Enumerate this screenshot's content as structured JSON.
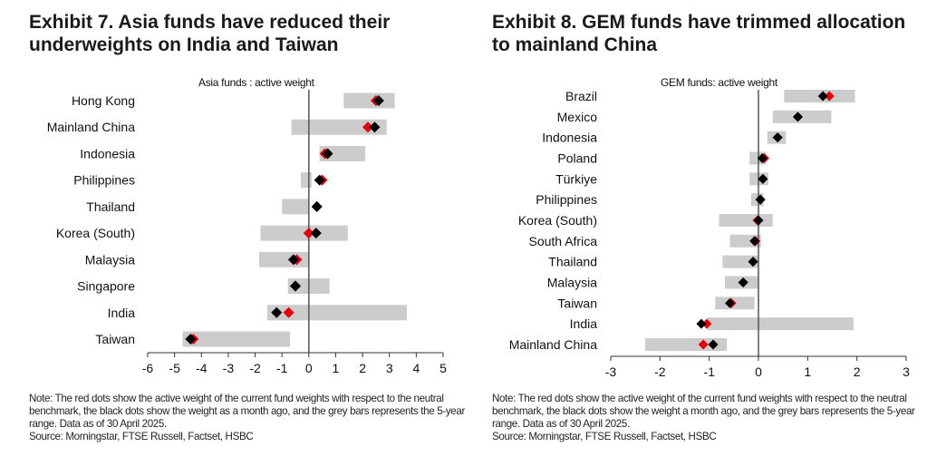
{
  "colors": {
    "current": "#e8000b",
    "month_ago": "#000000",
    "range_bar": "#cccccc",
    "axis": "#555555"
  },
  "chart_data": [
    {
      "type": "range-dot",
      "title": "Exhibit 7. Asia funds have reduced their underweights on India and Taiwan",
      "subtitle": "Asia funds : active weight",
      "xlabel": "",
      "ylabel": "",
      "xlim": [
        -6,
        5
      ],
      "xticks": [
        -6,
        -5,
        -4,
        -3,
        -2,
        -1,
        0,
        1,
        2,
        3,
        4,
        5
      ],
      "grid": false,
      "series_names": [
        "Current active weight (red)",
        "Active weight a month ago (black)",
        "5-year range (grey bar)"
      ],
      "categories": [
        "Hong Kong",
        "Mainland China",
        "Indonesia",
        "Philippines",
        "Thailand",
        "Korea (South)",
        "Malaysia",
        "Singapore",
        "India",
        "Taiwan"
      ],
      "range_min": [
        1.3,
        -0.65,
        0.4,
        -0.3,
        -1.0,
        -1.8,
        -1.85,
        -0.78,
        -1.55,
        -4.7
      ],
      "range_max": [
        3.2,
        2.9,
        2.1,
        0.1,
        0.0,
        1.45,
        0.0,
        0.77,
        3.65,
        -0.7
      ],
      "current": [
        2.5,
        2.2,
        0.6,
        0.5,
        0.3,
        0.0,
        -0.45,
        -0.5,
        -0.75,
        -4.3
      ],
      "month_ago": [
        2.6,
        2.45,
        0.7,
        0.4,
        0.3,
        0.27,
        -0.57,
        -0.5,
        -1.2,
        -4.4
      ],
      "note": "Note: The red dots show the active weight of the current fund weights with respect to the neutral benchmark, the black dots show the weight as a month ago, and the grey bars represents the 5-year range. Data as of 30 April 2025.",
      "source": "Source: Morningstar, FTSE Russell, Factset, HSBC"
    },
    {
      "type": "range-dot",
      "title": "Exhibit 8. GEM funds have trimmed allocation to mainland China",
      "subtitle": "GEM funds: active weight",
      "xlabel": "",
      "ylabel": "",
      "xlim": [
        -3,
        3
      ],
      "xticks": [
        -3,
        -2,
        -1,
        0,
        1,
        2,
        3
      ],
      "grid": false,
      "series_names": [
        "Current active weight (red)",
        "Active weight a month ago (black)",
        "5-year range (grey bar)"
      ],
      "categories": [
        "Brazil",
        "Mexico",
        "Indonesia",
        "Poland",
        "Türkiye",
        "Philippines",
        "Korea (South)",
        "South Africa",
        "Thailand",
        "Malaysia",
        "Taiwan",
        "India",
        "Mainland China"
      ],
      "range_min": [
        0.52,
        0.29,
        0.18,
        -0.18,
        -0.18,
        -0.15,
        -0.8,
        -0.58,
        -0.73,
        -0.68,
        -0.88,
        -1.05,
        -2.3
      ],
      "range_max": [
        1.96,
        1.48,
        0.56,
        0.15,
        0.2,
        0.1,
        0.29,
        0.05,
        0.0,
        0.0,
        -0.08,
        1.93,
        -0.64
      ],
      "current": [
        1.44,
        0.8,
        0.39,
        0.12,
        0.09,
        0.04,
        -0.02,
        -0.06,
        -0.11,
        -0.31,
        -0.55,
        -1.05,
        -1.12
      ],
      "month_ago": [
        1.31,
        0.8,
        0.39,
        0.08,
        0.09,
        0.04,
        0.0,
        -0.08,
        -0.11,
        -0.31,
        -0.58,
        -1.16,
        -0.92
      ],
      "note": "Note: The red dots show the active weight of the current fund weights with respect to the neutral benchmark, the black dots show the weight a month ago, and the grey bars represents the 5-year range. Data as of 30 April 2025.",
      "source": "Source: Morningstar, FTSE Russell, Factset, HSBC"
    }
  ]
}
